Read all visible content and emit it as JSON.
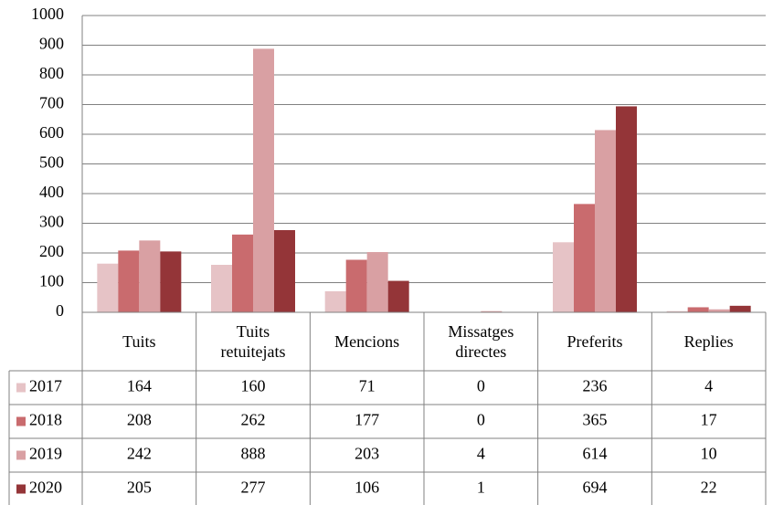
{
  "chart_data": {
    "type": "bar",
    "categories": [
      "Tuits",
      "Tuits retuitejats",
      "Mencions",
      "Missatges directes",
      "Preferits",
      "Replies"
    ],
    "series": [
      {
        "name": "2017",
        "color": "#e6c3c6",
        "values": [
          164,
          160,
          71,
          0,
          236,
          4
        ]
      },
      {
        "name": "2018",
        "color": "#c96b6e",
        "values": [
          208,
          262,
          177,
          0,
          365,
          17
        ]
      },
      {
        "name": "2019",
        "color": "#d9a0a3",
        "values": [
          242,
          888,
          203,
          4,
          614,
          10
        ]
      },
      {
        "name": "2020",
        "color": "#943538",
        "values": [
          205,
          277,
          106,
          1,
          694,
          22
        ]
      }
    ],
    "ylim": [
      0,
      1000
    ],
    "yticks": [
      0,
      100,
      200,
      300,
      400,
      500,
      600,
      700,
      800,
      900,
      1000
    ],
    "grid": true,
    "data_table": true
  }
}
